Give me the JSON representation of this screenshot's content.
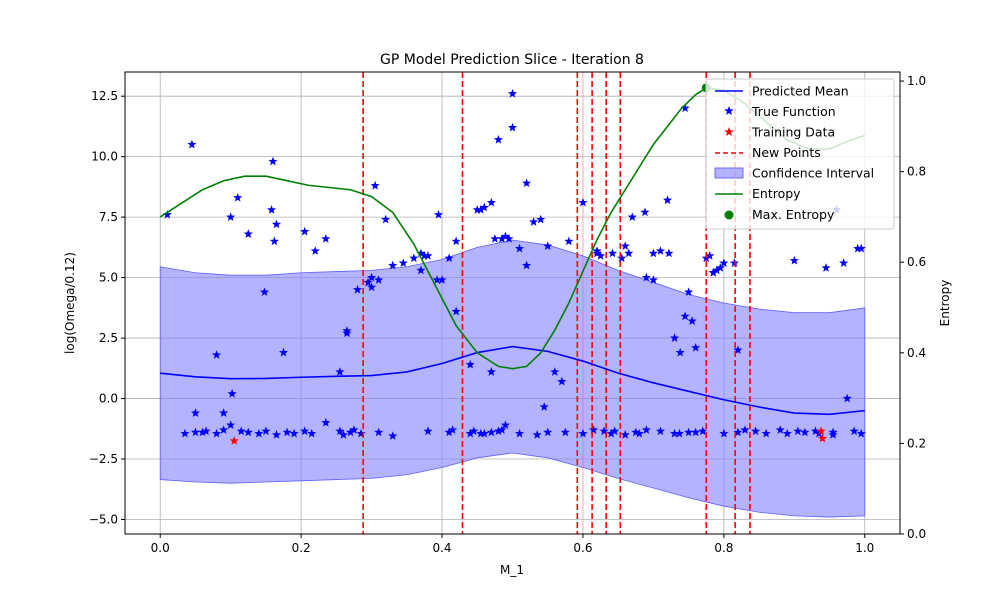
{
  "chart_data": {
    "type": "line",
    "title": "GP Model Prediction Slice - Iteration 8",
    "xlabel": "M_1",
    "ylabel": "log(Omega/0.12)",
    "y2label": "Entropy",
    "xlim": [
      -0.05,
      1.05
    ],
    "ylim": [
      -5.6,
      13.5
    ],
    "y2lim": [
      0.0,
      1.02
    ],
    "xticks": [
      0.0,
      0.2,
      0.4,
      0.6,
      0.8,
      1.0
    ],
    "xtick_labels": [
      "0.0",
      "0.2",
      "0.4",
      "0.6",
      "0.8",
      "1.0"
    ],
    "yticks": [
      -5.0,
      -2.5,
      0.0,
      2.5,
      5.0,
      7.5,
      10.0,
      12.5
    ],
    "ytick_labels": [
      "−5.0",
      "−2.5",
      "0.0",
      "2.5",
      "5.0",
      "7.5",
      "10.0",
      "12.5"
    ],
    "y2ticks": [
      0.0,
      0.2,
      0.4,
      0.6,
      0.8,
      1.0
    ],
    "y2tick_labels": [
      "0.0",
      "0.2",
      "0.4",
      "0.6",
      "0.8",
      "1.0"
    ],
    "grid": true,
    "legend_position": "top-right",
    "legend": [
      "Predicted Mean",
      "True Function",
      "Training Data",
      "New Points",
      "Confidence Interval",
      "Entropy",
      "Max. Entropy"
    ],
    "colors": {
      "mean": "#0000ff",
      "true": "#0000ff",
      "training": "#ff0000",
      "new_points": "#ff0000",
      "ci_fill": "#8080ff",
      "entropy": "#008000",
      "max_entropy": "#008000",
      "grid": "#b0b0b0"
    },
    "mean": {
      "x": [
        0.0,
        0.05,
        0.1,
        0.15,
        0.2,
        0.25,
        0.3,
        0.35,
        0.4,
        0.45,
        0.5,
        0.55,
        0.6,
        0.65,
        0.7,
        0.75,
        0.8,
        0.85,
        0.9,
        0.95,
        1.0
      ],
      "y": [
        1.05,
        0.9,
        0.82,
        0.83,
        0.88,
        0.92,
        0.95,
        1.1,
        1.45,
        1.9,
        2.15,
        1.95,
        1.55,
        1.05,
        0.65,
        0.3,
        -0.05,
        -0.35,
        -0.6,
        -0.65,
        -0.5
      ]
    },
    "ci_upper": {
      "x": [
        0.0,
        0.05,
        0.1,
        0.15,
        0.2,
        0.25,
        0.3,
        0.35,
        0.4,
        0.45,
        0.5,
        0.55,
        0.6,
        0.65,
        0.7,
        0.75,
        0.8,
        0.85,
        0.9,
        0.95,
        1.0
      ],
      "y": [
        5.45,
        5.2,
        5.1,
        5.1,
        5.2,
        5.25,
        5.3,
        5.45,
        5.75,
        6.25,
        6.55,
        6.35,
        5.9,
        5.3,
        4.8,
        4.3,
        3.95,
        3.7,
        3.55,
        3.55,
        3.75
      ]
    },
    "ci_lower": {
      "x": [
        0.0,
        0.05,
        0.1,
        0.15,
        0.2,
        0.25,
        0.3,
        0.35,
        0.4,
        0.45,
        0.5,
        0.55,
        0.6,
        0.65,
        0.7,
        0.75,
        0.8,
        0.85,
        0.9,
        0.95,
        1.0
      ],
      "y": [
        -3.35,
        -3.45,
        -3.5,
        -3.45,
        -3.4,
        -3.35,
        -3.3,
        -3.15,
        -2.85,
        -2.45,
        -2.25,
        -2.45,
        -2.85,
        -3.3,
        -3.7,
        -4.1,
        -4.45,
        -4.7,
        -4.85,
        -4.9,
        -4.85
      ]
    },
    "entropy": {
      "x": [
        0.0,
        0.03,
        0.06,
        0.09,
        0.12,
        0.15,
        0.18,
        0.21,
        0.24,
        0.27,
        0.3,
        0.33,
        0.36,
        0.39,
        0.42,
        0.45,
        0.48,
        0.5,
        0.52,
        0.54,
        0.56,
        0.58,
        0.6,
        0.62,
        0.64,
        0.66,
        0.68,
        0.7,
        0.72,
        0.74,
        0.76,
        0.775,
        0.8,
        0.83,
        0.86,
        0.89,
        0.92,
        0.95,
        0.98,
        1.0
      ],
      "y": [
        0.7,
        0.73,
        0.76,
        0.78,
        0.79,
        0.79,
        0.78,
        0.77,
        0.765,
        0.76,
        0.745,
        0.71,
        0.64,
        0.55,
        0.46,
        0.4,
        0.37,
        0.365,
        0.37,
        0.4,
        0.45,
        0.51,
        0.58,
        0.65,
        0.71,
        0.76,
        0.81,
        0.86,
        0.9,
        0.94,
        0.97,
        0.985,
        0.98,
        0.95,
        0.91,
        0.87,
        0.85,
        0.85,
        0.87,
        0.88
      ]
    },
    "max_entropy": {
      "x": 0.775,
      "y": 0.985
    },
    "new_points_x": [
      0.288,
      0.429,
      0.592,
      0.613,
      0.633,
      0.653,
      0.775,
      0.816,
      0.837
    ],
    "training_data": {
      "x": [
        0.105,
        0.938,
        0.94
      ],
      "y": [
        -1.75,
        -1.35,
        -1.65
      ]
    },
    "true_function": {
      "x": [
        0.01,
        0.045,
        0.16,
        0.205,
        0.32,
        0.42,
        0.305,
        0.33,
        0.345,
        0.37,
        0.395,
        0.455,
        0.47,
        0.5,
        0.52,
        0.54,
        0.58,
        0.62,
        0.67,
        0.7,
        0.72,
        0.745,
        0.05,
        0.09,
        0.11,
        0.125,
        0.148,
        0.162,
        0.22,
        0.235,
        0.255,
        0.265,
        0.28,
        0.295,
        0.3,
        0.3,
        0.31,
        0.36,
        0.38,
        0.4,
        0.42,
        0.45,
        0.46,
        0.47,
        0.475,
        0.49,
        0.495,
        0.51,
        0.53,
        0.55,
        0.56,
        0.57,
        0.6,
        0.625,
        0.66,
        0.69,
        0.71,
        0.73,
        0.745,
        0.755,
        0.78,
        0.785,
        0.79,
        0.8,
        0.82,
        0.9,
        0.945,
        0.97,
        0.99,
        0.08,
        0.1,
        0.102,
        0.158,
        0.165,
        0.175,
        0.265,
        0.37,
        0.375,
        0.393,
        0.41,
        0.44,
        0.48,
        0.485,
        0.5,
        0.52,
        0.62,
        0.642,
        0.655,
        0.665,
        0.688,
        0.7,
        0.722,
        0.738,
        0.75,
        0.76,
        0.775,
        0.785,
        0.795,
        0.815,
        0.96,
        0.995,
        0.235,
        0.1,
        0.06,
        0.545,
        0.455,
        0.415,
        0.535,
        0.485,
        0.49,
        0.55,
        0.66,
        0.737,
        0.75,
        0.93,
        0.955,
        0.83,
        0.975
      ],
      "y": [
        7.6,
        10.5,
        9.8,
        6.9,
        7.4,
        6.5,
        8.8,
        5.5,
        5.6,
        6.0,
        7.6,
        7.8,
        8.1,
        11.2,
        8.9,
        7.4,
        6.5,
        6.0,
        7.5,
        6.0,
        8.2,
        12.0,
        -0.6,
        -0.6,
        8.3,
        6.8,
        4.4,
        6.5,
        6.1,
        6.6,
        1.1,
        2.8,
        4.5,
        4.8,
        4.6,
        5.0,
        4.9,
        5.8,
        5.9,
        4.9,
        3.6,
        7.8,
        7.9,
        1.1,
        6.6,
        6.7,
        6.6,
        6.2,
        7.3,
        6.3,
        1.1,
        0.7,
        8.1,
        5.9,
        6.3,
        5.0,
        6.1,
        2.5,
        3.4,
        3.2,
        5.9,
        5.2,
        5.3,
        5.6,
        2.0,
        5.7,
        5.4,
        5.6,
        6.2,
        1.8,
        7.5,
        0.2,
        7.8,
        7.2,
        1.9,
        2.7,
        5.3,
        5.9,
        4.9,
        5.8,
        1.4,
        10.7,
        6.6,
        12.6,
        5.5,
        6.1,
        6.0,
        5.8,
        6.0,
        7.7,
        4.9,
        6.0,
        1.9,
        4.4,
        2.1,
        5.8,
        5.2,
        5.4,
        5.6,
        7.8,
        6.2,
        -1.0,
        -1.1,
        -1.4,
        -0.35,
        -1.45,
        -1.3,
        -1.5,
        -1.3,
        -1.1,
        -1.4,
        -1.5,
        -1.45,
        -1.4,
        -1.35,
        -1.5,
        -1.3,
        0.0
      ]
    },
    "true_function_band": {
      "x": [
        0.035,
        0.05,
        0.065,
        0.08,
        0.09,
        0.115,
        0.125,
        0.14,
        0.15,
        0.165,
        0.18,
        0.19,
        0.205,
        0.215,
        0.255,
        0.26,
        0.27,
        0.275,
        0.285,
        0.31,
        0.33,
        0.38,
        0.41,
        0.44,
        0.445,
        0.46,
        0.47,
        0.48,
        0.51,
        0.575,
        0.6,
        0.615,
        0.63,
        0.64,
        0.645,
        0.675,
        0.68,
        0.69,
        0.71,
        0.73,
        0.76,
        0.77,
        0.8,
        0.82,
        0.845,
        0.86,
        0.88,
        0.89,
        0.905,
        0.915,
        0.935,
        0.955,
        0.985,
        0.995
      ],
      "y": [
        -1.45,
        -1.4,
        -1.35,
        -1.45,
        -1.3,
        -1.35,
        -1.4,
        -1.45,
        -1.35,
        -1.5,
        -1.4,
        -1.45,
        -1.35,
        -1.45,
        -1.35,
        -1.5,
        -1.4,
        -1.3,
        -1.45,
        -1.4,
        -1.55,
        -1.35,
        -1.4,
        -1.45,
        -1.35,
        -1.45,
        -1.4,
        -1.35,
        -1.45,
        -1.4,
        -1.45,
        -1.3,
        -1.35,
        -1.45,
        -1.35,
        -1.4,
        -1.45,
        -1.3,
        -1.35,
        -1.45,
        -1.4,
        -1.35,
        -1.45,
        -1.4,
        -1.35,
        -1.45,
        -1.3,
        -1.45,
        -1.35,
        -1.4,
        -1.45,
        -1.4,
        -1.35,
        -1.45
      ]
    }
  }
}
